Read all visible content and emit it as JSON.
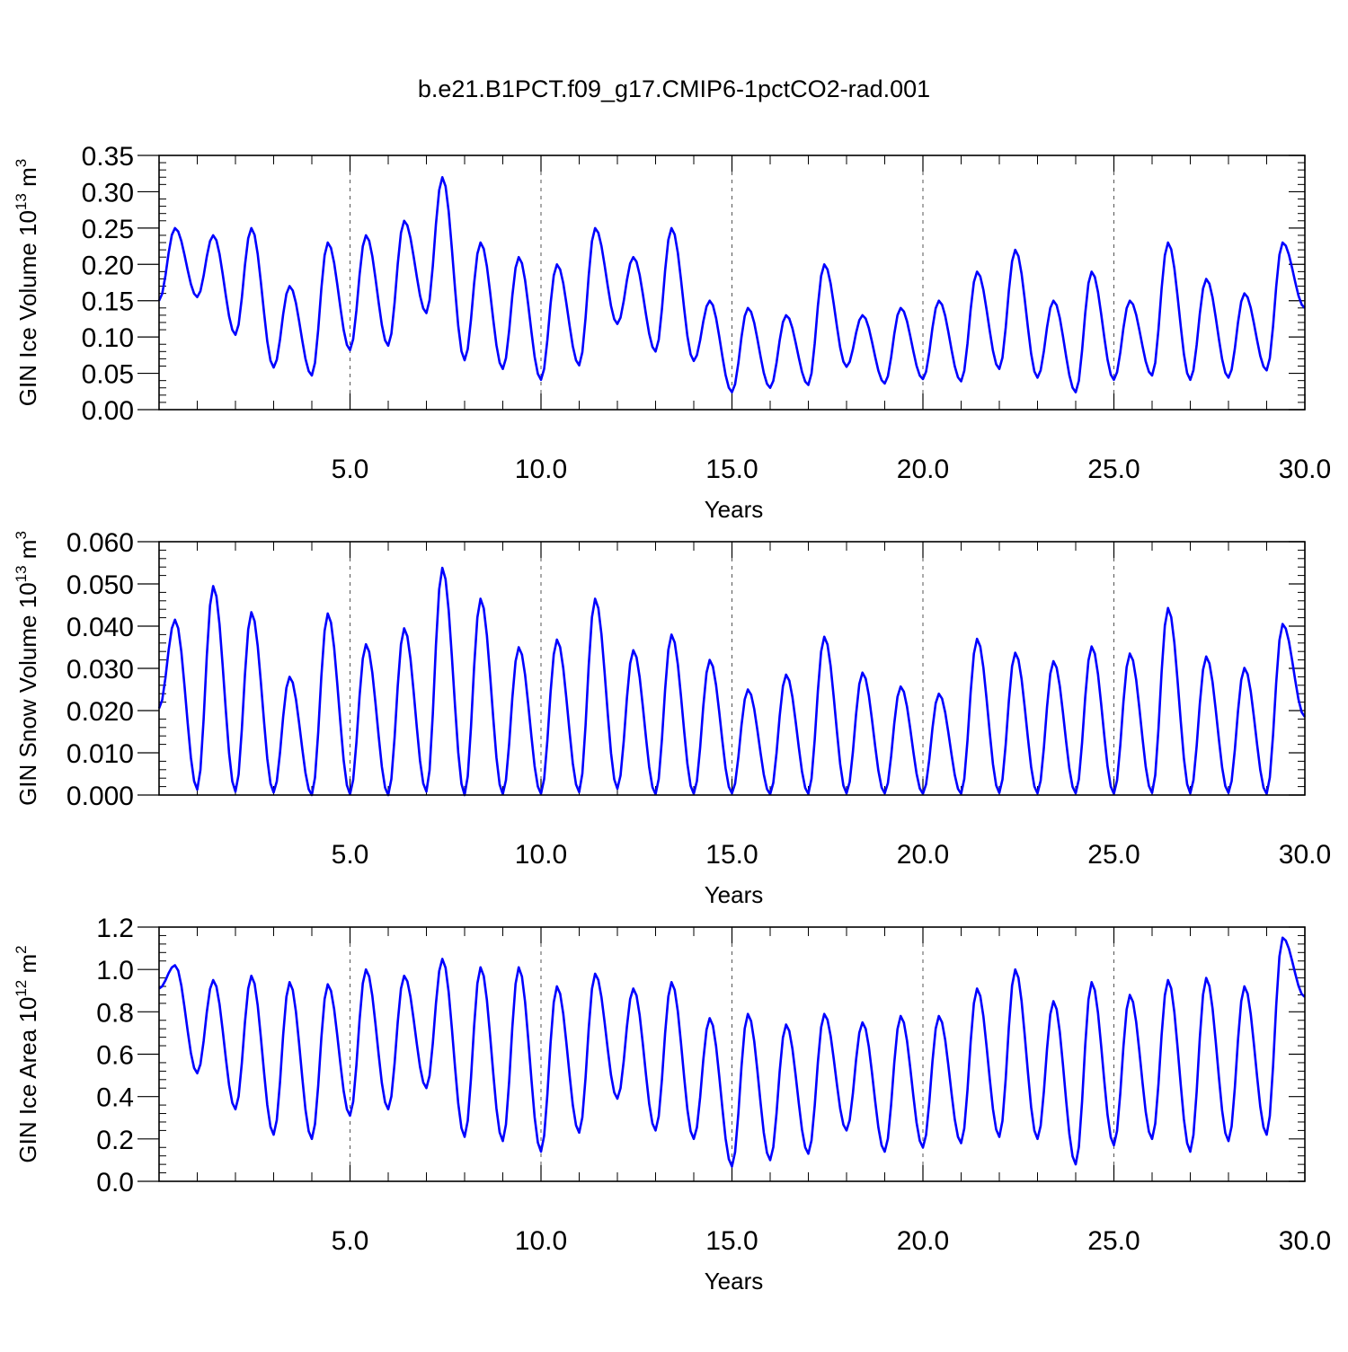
{
  "figure": {
    "title": "b.e21.B1PCT.f09_g17.CMIP6-1pctCO2-rad.001"
  },
  "chart_data": [
    {
      "type": "line",
      "ylabel": {
        "prefix": "GIN Ice Volume 10",
        "exp": "13",
        "unit": " m",
        "unit_exp": "3"
      },
      "xlabel": "Years",
      "xlim": [
        0.0,
        30.0
      ],
      "ylim": [
        0.0,
        0.35
      ],
      "yticks": [
        0.0,
        0.05,
        0.1,
        0.15,
        0.2,
        0.25,
        0.3,
        0.35
      ],
      "ytick_labels": [
        "0.00",
        "0.05",
        "0.10",
        "0.15",
        "0.20",
        "0.25",
        "0.30",
        "0.35"
      ],
      "xticks": [
        5.0,
        10.0,
        15.0,
        20.0,
        25.0,
        30.0
      ],
      "xtick_labels": [
        "5.0",
        "10.0",
        "15.0",
        "20.0",
        "25.0",
        "30.0"
      ],
      "grid_x": [
        5.0,
        10.0,
        15.0,
        20.0,
        25.0
      ],
      "color": "#0000ff",
      "peaks": [
        0.25,
        0.24,
        0.25,
        0.17,
        0.23,
        0.24,
        0.26,
        0.32,
        0.23,
        0.21,
        0.2,
        0.25,
        0.21,
        0.25,
        0.15,
        0.14,
        0.13,
        0.2,
        0.13,
        0.14,
        0.15,
        0.19,
        0.22,
        0.15,
        0.19,
        0.15,
        0.23,
        0.18,
        0.16,
        0.23
      ],
      "troughs": [
        0.15,
        0.155,
        0.103,
        0.058,
        0.047,
        0.082,
        0.088,
        0.133,
        0.068,
        0.056,
        0.041,
        0.061,
        0.118,
        0.08,
        0.067,
        0.024,
        0.03,
        0.034,
        0.059,
        0.036,
        0.042,
        0.039,
        0.056,
        0.044,
        0.024,
        0.041,
        0.047,
        0.041,
        0.044,
        0.054
      ],
      "end_value": 0.14
    },
    {
      "type": "line",
      "ylabel": {
        "prefix": "GIN Snow Volume 10",
        "exp": "13",
        "unit": " m",
        "unit_exp": "3"
      },
      "xlabel": "Years",
      "xlim": [
        0.0,
        30.0
      ],
      "ylim": [
        0.0,
        0.06
      ],
      "yticks": [
        0.0,
        0.01,
        0.02,
        0.03,
        0.04,
        0.05,
        0.06
      ],
      "ytick_labels": [
        "0.000",
        "0.010",
        "0.020",
        "0.030",
        "0.040",
        "0.050",
        "0.060"
      ],
      "xticks": [
        5.0,
        10.0,
        15.0,
        20.0,
        25.0,
        30.0
      ],
      "xtick_labels": [
        "5.0",
        "10.0",
        "15.0",
        "20.0",
        "25.0",
        "30.0"
      ],
      "grid_x": [
        5.0,
        10.0,
        15.0,
        20.0,
        25.0
      ],
      "color": "#0000ff",
      "peaks": [
        0.0415,
        0.0495,
        0.0433,
        0.028,
        0.043,
        0.0357,
        0.0395,
        0.0538,
        0.0465,
        0.035,
        0.0368,
        0.0465,
        0.0343,
        0.038,
        0.032,
        0.025,
        0.0285,
        0.0375,
        0.029,
        0.0257,
        0.024,
        0.037,
        0.0337,
        0.0317,
        0.0352,
        0.0335,
        0.0443,
        0.0328,
        0.0301,
        0.0405
      ],
      "troughs": [
        0.0205,
        0.0013,
        0.0008,
        0.0006,
        0.0,
        0.0002,
        0.0,
        0.0008,
        0.0,
        0.0002,
        0.0003,
        0.0007,
        0.0015,
        0.0002,
        0.0003,
        0.0004,
        0.0002,
        0.0003,
        0.0004,
        0.0004,
        0.0003,
        0.0003,
        0.0005,
        0.0004,
        0.0004,
        0.0003,
        0.0005,
        0.0004,
        0.0005,
        0.0003
      ],
      "end_value": 0.0185
    },
    {
      "type": "line",
      "ylabel": {
        "prefix": "GIN Ice Area 10",
        "exp": "12",
        "unit": " m",
        "unit_exp": "2"
      },
      "xlabel": "Years",
      "xlim": [
        0.0,
        30.0
      ],
      "ylim": [
        0.0,
        1.2
      ],
      "yticks": [
        0.0,
        0.2,
        0.4,
        0.6,
        0.8,
        1.0,
        1.2
      ],
      "ytick_labels": [
        "0.0",
        "0.2",
        "0.4",
        "0.6",
        "0.8",
        "1.0",
        "1.2"
      ],
      "xticks": [
        5.0,
        10.0,
        15.0,
        20.0,
        25.0,
        30.0
      ],
      "xtick_labels": [
        "5.0",
        "10.0",
        "15.0",
        "20.0",
        "25.0",
        "30.0"
      ],
      "grid_x": [
        5.0,
        10.0,
        15.0,
        20.0,
        25.0
      ],
      "color": "#0000ff",
      "peaks": [
        1.02,
        0.95,
        0.97,
        0.94,
        0.93,
        1.0,
        0.97,
        1.05,
        1.01,
        1.01,
        0.92,
        0.98,
        0.91,
        0.94,
        0.77,
        0.79,
        0.74,
        0.79,
        0.75,
        0.78,
        0.78,
        0.91,
        1.0,
        0.85,
        0.94,
        0.88,
        0.95,
        0.96,
        0.92,
        1.15
      ],
      "troughs": [
        0.91,
        0.51,
        0.34,
        0.22,
        0.2,
        0.31,
        0.34,
        0.44,
        0.21,
        0.19,
        0.14,
        0.23,
        0.39,
        0.24,
        0.2,
        0.07,
        0.1,
        0.13,
        0.24,
        0.14,
        0.16,
        0.18,
        0.21,
        0.2,
        0.08,
        0.17,
        0.2,
        0.14,
        0.19,
        0.22
      ],
      "end_value": 0.87
    }
  ]
}
